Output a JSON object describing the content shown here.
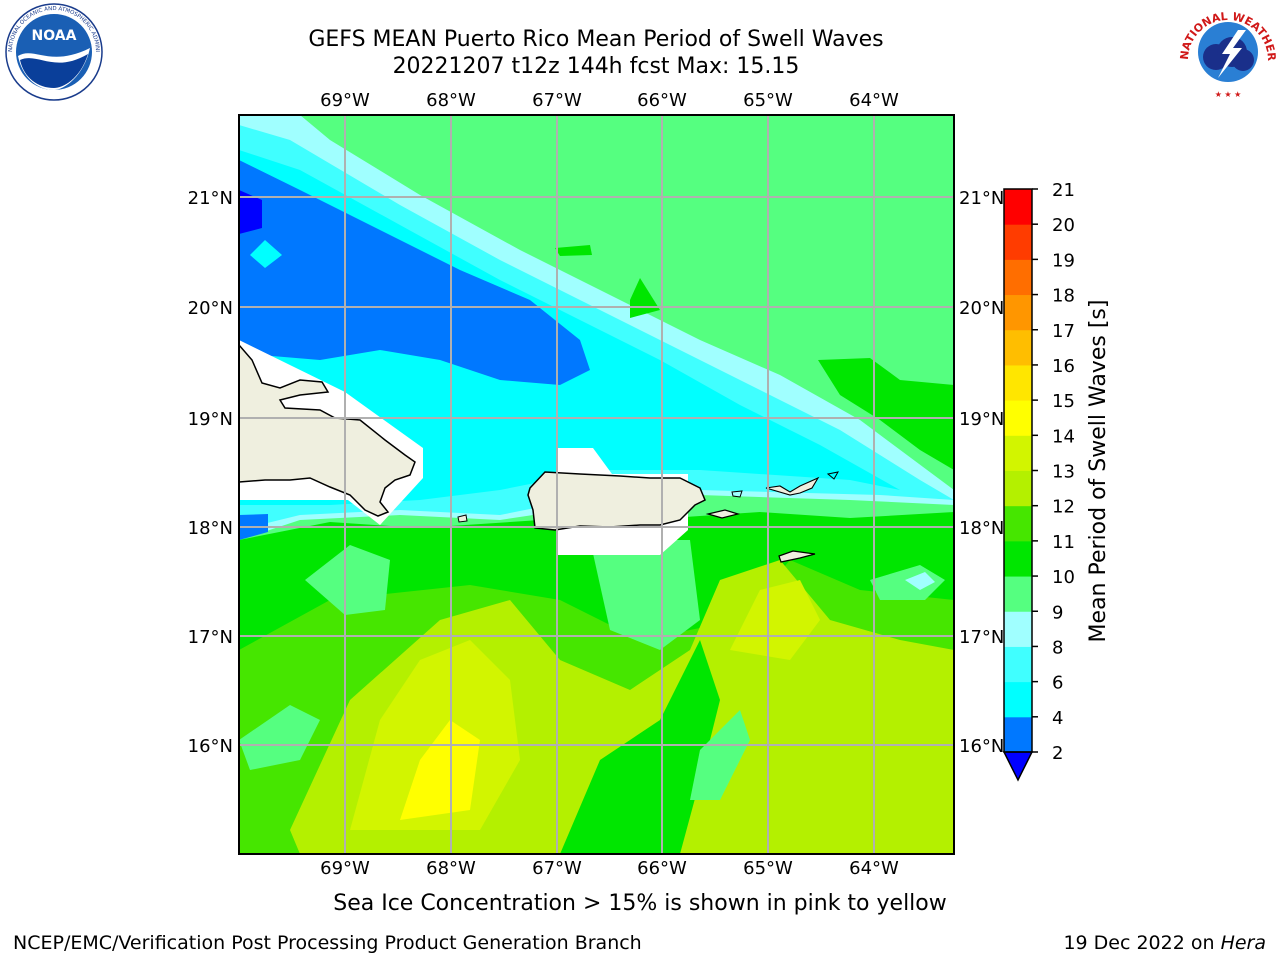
{
  "header": {
    "title_line1": "GEFS MEAN Puerto Rico Mean Period of Swell Waves",
    "title_line2": "20221207 t12z 144h fcst   Max: 15.15"
  },
  "map": {
    "lon_ticks": [
      "69°W",
      "68°W",
      "67°W",
      "66°W",
      "65°W",
      "64°W"
    ],
    "lat_ticks": [
      "21°N",
      "20°N",
      "19°N",
      "18°N",
      "17°N",
      "16°N"
    ],
    "lon_range": [
      -69.98,
      -63.27
    ],
    "lat_range": [
      15.0,
      21.75
    ],
    "ocean_color": "#55ff80",
    "land_color": "#efefdf",
    "grid_color": "#b0b0b0"
  },
  "colorbar": {
    "label": "Mean Period of Swell Waves [s]",
    "tick_labels": [
      "2",
      "4",
      "6",
      "8",
      "9",
      "10",
      "11",
      "12",
      "13",
      "14",
      "15",
      "16",
      "17",
      "18",
      "19",
      "20",
      "21"
    ],
    "colors": [
      "#0078ff",
      "#00ffff",
      "#40ffff",
      "#a0ffff",
      "#55ff80",
      "#00e600",
      "#46e600",
      "#b4f000",
      "#d2f500",
      "#ffff00",
      "#ffe600",
      "#ffbe00",
      "#ff9600",
      "#ff6e00",
      "#ff3c00",
      "#ff0000"
    ],
    "under_color": "#0000ff"
  },
  "note": "Sea Ice Concentration > 15% is shown in pink to yellow",
  "footer": {
    "left": "NCEP/EMC/Verification Post Processing Product Generation Branch",
    "right_prefix": "19 Dec 2022 on ",
    "right_host": "Hera"
  },
  "logos": {
    "left_icon": "noaa-logo-icon",
    "right_icon": "nws-logo-icon"
  }
}
